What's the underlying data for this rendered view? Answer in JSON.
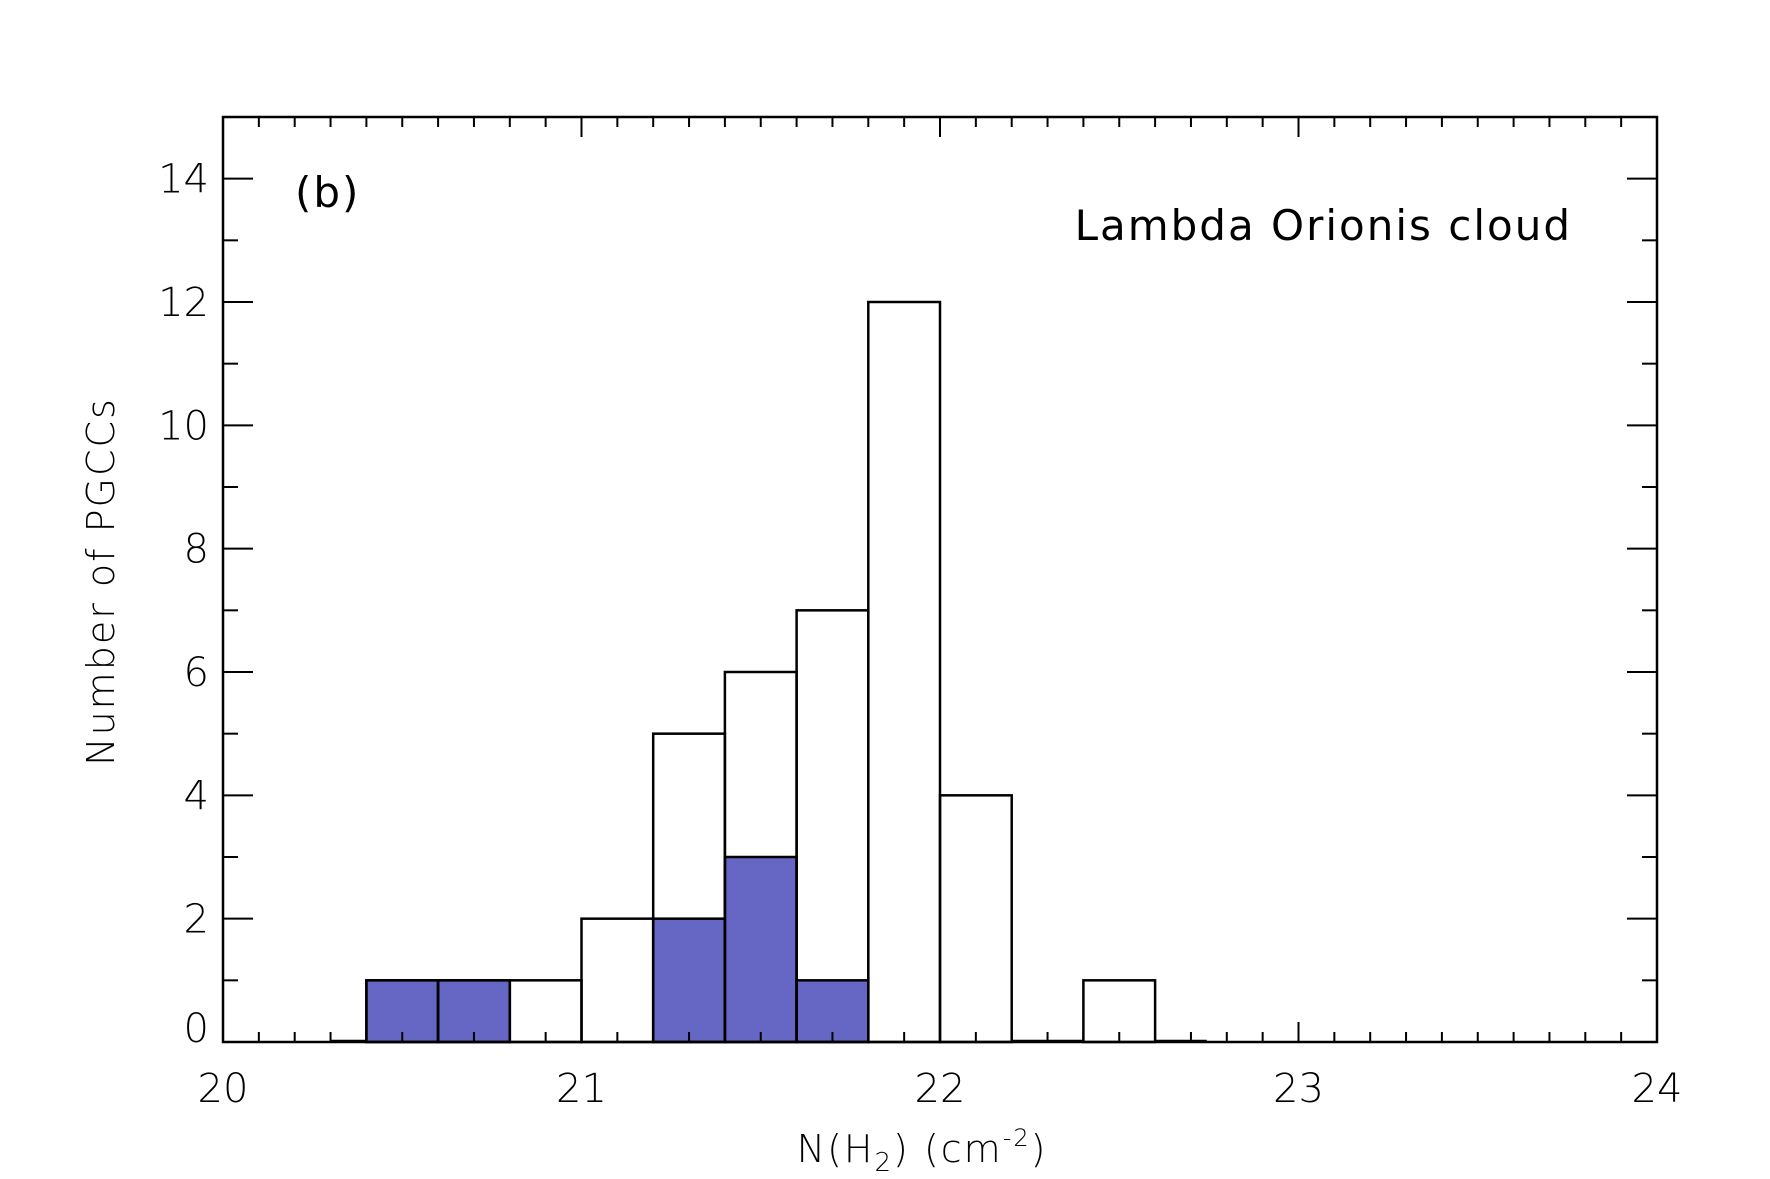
{
  "chart_data": {
    "type": "bar",
    "panel_label": "(b)",
    "annotation": "Lambda Orionis cloud",
    "xlabel": {
      "main": "N(H",
      "sub": "2",
      "mid": ")  (cm",
      "sup": "-2",
      "end": ")"
    },
    "ylabel": "Number of PGCCs",
    "xlim": [
      20,
      24
    ],
    "ylim": [
      0,
      15
    ],
    "x_ticks": [
      20,
      21,
      22,
      23,
      24
    ],
    "y_ticks": [
      0,
      2,
      4,
      6,
      8,
      10,
      12,
      14
    ],
    "bin_width": 0.2,
    "bin_starts": [
      20.0,
      20.2,
      20.4,
      20.6,
      20.8,
      21.0,
      21.2,
      21.4,
      21.6,
      21.8,
      22.0,
      22.2,
      22.4,
      22.6,
      22.8
    ],
    "series": [
      {
        "values": [
          0,
          0,
          1,
          1,
          1,
          2,
          5,
          6,
          7,
          12,
          4,
          0,
          1,
          0,
          0
        ],
        "color": "#ffffff",
        "style": "outline"
      },
      {
        "values": [
          0,
          0,
          1,
          1,
          0,
          0,
          2,
          3,
          1,
          0,
          0,
          0,
          0,
          0,
          0
        ],
        "color": "#6666c4",
        "style": "filled"
      }
    ],
    "grid": false,
    "legend": "none"
  }
}
